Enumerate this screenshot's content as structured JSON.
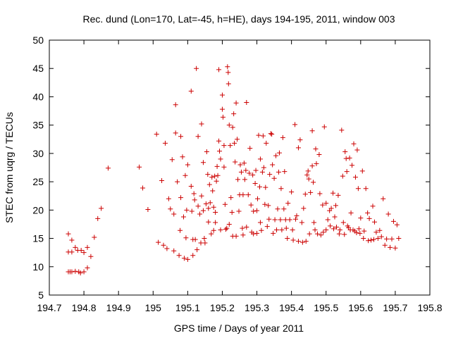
{
  "chart_data": {
    "type": "scatter",
    "title": "Rec. dund (Lon=170, Lat=-45, h=HE), days 194-195, 2011, window 003",
    "xlabel": "GPS time / Days of year 2011",
    "ylabel": "STEC from uqrg / TECUs",
    "xlim": [
      194.7,
      195.8
    ],
    "ylim": [
      5,
      50
    ],
    "xticks": [
      194.7,
      194.8,
      194.9,
      195.0,
      195.1,
      195.2,
      195.3,
      195.4,
      195.5,
      195.6,
      195.7,
      195.8
    ],
    "xtick_labels": [
      "194.7",
      "194.8",
      "194.9",
      "195",
      "195.1",
      "195.2",
      "195.3",
      "195.4",
      "195.5",
      "195.6",
      "195.7",
      "195.8"
    ],
    "yticks": [
      5,
      10,
      15,
      20,
      25,
      30,
      35,
      40,
      45,
      50
    ],
    "ytick_labels": [
      "5",
      "10",
      "15",
      "20",
      "25",
      "30",
      "35",
      "40",
      "45",
      "50"
    ],
    "grid": false,
    "marker": "+",
    "color": "#cc0000",
    "series": [
      {
        "name": "STEC",
        "points": [
          [
            194.755,
            9.1
          ],
          [
            194.76,
            9.1
          ],
          [
            194.765,
            9.1
          ],
          [
            194.775,
            9.2
          ],
          [
            194.785,
            9.1
          ],
          [
            194.79,
            8.9
          ],
          [
            194.8,
            9.1
          ],
          [
            194.81,
            9.8
          ],
          [
            194.755,
            12.6
          ],
          [
            194.765,
            12.6
          ],
          [
            194.775,
            13.4
          ],
          [
            194.782,
            12.9
          ],
          [
            194.792,
            12.9
          ],
          [
            194.8,
            12.5
          ],
          [
            194.81,
            13.4
          ],
          [
            194.82,
            11.8
          ],
          [
            194.755,
            15.8
          ],
          [
            194.765,
            14.7
          ],
          [
            194.83,
            15.2
          ],
          [
            194.84,
            18.5
          ],
          [
            194.85,
            20.3
          ],
          [
            194.87,
            27.4
          ],
          [
            194.96,
            27.6
          ],
          [
            194.97,
            23.9
          ],
          [
            194.985,
            20.1
          ],
          [
            195.01,
            33.4
          ],
          [
            195.015,
            14.3
          ],
          [
            195.025,
            25.2
          ],
          [
            195.03,
            13.8
          ],
          [
            195.035,
            31.8
          ],
          [
            195.04,
            13.2
          ],
          [
            195.045,
            22.0
          ],
          [
            195.05,
            20.2
          ],
          [
            195.055,
            28.9
          ],
          [
            195.06,
            12.8
          ],
          [
            195.06,
            19.3
          ],
          [
            195.065,
            33.6
          ],
          [
            195.065,
            38.6
          ],
          [
            195.07,
            25.0
          ],
          [
            195.075,
            12.0
          ],
          [
            195.078,
            16.4
          ],
          [
            195.08,
            33.0
          ],
          [
            195.08,
            22.2
          ],
          [
            195.085,
            29.4
          ],
          [
            195.088,
            18.8
          ],
          [
            195.09,
            11.5
          ],
          [
            195.093,
            26.1
          ],
          [
            195.095,
            15.1
          ],
          [
            195.097,
            20.0
          ],
          [
            195.1,
            28.0
          ],
          [
            195.1,
            11.3
          ],
          [
            195.11,
            41.0
          ],
          [
            195.11,
            24.2
          ],
          [
            195.112,
            19.8
          ],
          [
            195.115,
            14.8
          ],
          [
            195.115,
            12.0
          ],
          [
            195.118,
            22.9
          ],
          [
            195.12,
            21.8
          ],
          [
            195.122,
            14.8
          ],
          [
            195.125,
            45.0
          ],
          [
            195.127,
            13.0
          ],
          [
            195.13,
            33.0
          ],
          [
            195.13,
            20.7
          ],
          [
            195.135,
            19.3
          ],
          [
            195.138,
            14.2
          ],
          [
            195.14,
            35.2
          ],
          [
            195.14,
            22.5
          ],
          [
            195.145,
            28.4
          ],
          [
            195.145,
            19.9
          ],
          [
            195.148,
            15.0
          ],
          [
            195.15,
            14.2
          ],
          [
            195.153,
            21.1
          ],
          [
            195.155,
            30.3
          ],
          [
            195.158,
            26.3
          ],
          [
            195.16,
            20.3
          ],
          [
            195.16,
            17.9
          ],
          [
            195.163,
            24.5
          ],
          [
            195.165,
            21.3
          ],
          [
            195.168,
            15.8
          ],
          [
            195.17,
            25.8
          ],
          [
            195.172,
            23.4
          ],
          [
            195.175,
            16.4
          ],
          [
            195.175,
            20.5
          ],
          [
            195.178,
            26.0
          ],
          [
            195.18,
            19.6
          ],
          [
            195.18,
            17.8
          ],
          [
            195.183,
            25.1
          ],
          [
            195.185,
            27.7
          ],
          [
            195.187,
            26.1
          ],
          [
            195.19,
            44.8
          ],
          [
            195.19,
            32.2
          ],
          [
            195.192,
            30.4
          ],
          [
            195.195,
            29.0
          ],
          [
            195.195,
            16.5
          ],
          [
            195.2,
            40.3
          ],
          [
            195.2,
            37.8
          ],
          [
            195.202,
            36.4
          ],
          [
            195.205,
            31.4
          ],
          [
            195.205,
            27.6
          ],
          [
            195.208,
            21.0
          ],
          [
            195.21,
            16.6
          ],
          [
            195.213,
            16.8
          ],
          [
            195.215,
            45.3
          ],
          [
            195.217,
            44.3
          ],
          [
            195.218,
            42.3
          ],
          [
            195.22,
            35.0
          ],
          [
            195.22,
            17.5
          ],
          [
            195.223,
            31.4
          ],
          [
            195.225,
            22.2
          ],
          [
            195.228,
            19.6
          ],
          [
            195.23,
            34.6
          ],
          [
            195.23,
            15.4
          ],
          [
            195.233,
            37.0
          ],
          [
            195.235,
            31.8
          ],
          [
            195.237,
            28.5
          ],
          [
            195.24,
            38.9
          ],
          [
            195.24,
            15.4
          ],
          [
            195.243,
            32.5
          ],
          [
            195.245,
            25.4
          ],
          [
            195.248,
            19.8
          ],
          [
            195.25,
            22.7
          ],
          [
            195.252,
            28.0
          ],
          [
            195.255,
            26.7
          ],
          [
            195.258,
            16.8
          ],
          [
            195.26,
            22.7
          ],
          [
            195.26,
            15.6
          ],
          [
            195.263,
            28.3
          ],
          [
            195.265,
            25.4
          ],
          [
            195.268,
            27.0
          ],
          [
            195.27,
            17.0
          ],
          [
            195.27,
            39.0
          ],
          [
            195.275,
            22.7
          ],
          [
            195.278,
            26.5
          ],
          [
            195.28,
            30.9
          ],
          [
            195.283,
            20.9
          ],
          [
            195.285,
            16.1
          ],
          [
            195.288,
            26.2
          ],
          [
            195.29,
            19.8
          ],
          [
            195.29,
            15.8
          ],
          [
            195.295,
            24.7
          ],
          [
            195.297,
            27.0
          ],
          [
            195.3,
            19.9
          ],
          [
            195.3,
            15.9
          ],
          [
            195.302,
            22.0
          ],
          [
            195.305,
            33.2
          ],
          [
            195.308,
            24.1
          ],
          [
            195.31,
            29.0
          ],
          [
            195.31,
            17.8
          ],
          [
            195.313,
            16.4
          ],
          [
            195.316,
            26.7
          ],
          [
            195.318,
            33.1
          ],
          [
            195.32,
            27.5
          ],
          [
            195.323,
            21.0
          ],
          [
            195.325,
            24.0
          ],
          [
            195.327,
            31.8
          ],
          [
            195.33,
            17.1
          ],
          [
            195.333,
            20.8
          ],
          [
            195.335,
            18.4
          ],
          [
            195.337,
            26.3
          ],
          [
            195.34,
            33.5
          ],
          [
            195.343,
            33.4
          ],
          [
            195.345,
            28.0
          ],
          [
            195.347,
            15.9
          ],
          [
            195.35,
            25.6
          ],
          [
            195.352,
            18.3
          ],
          [
            195.355,
            29.6
          ],
          [
            195.357,
            16.5
          ],
          [
            195.36,
            20.2
          ],
          [
            195.363,
            26.7
          ],
          [
            195.365,
            30.1
          ],
          [
            195.368,
            18.3
          ],
          [
            195.37,
            23.8
          ],
          [
            195.372,
            16.5
          ],
          [
            195.375,
            32.8
          ],
          [
            195.378,
            20.2
          ],
          [
            195.38,
            26.8
          ],
          [
            195.383,
            18.3
          ],
          [
            195.385,
            16.8
          ],
          [
            195.388,
            15.0
          ],
          [
            195.39,
            21.2
          ],
          [
            195.395,
            18.3
          ],
          [
            195.4,
            23.2
          ],
          [
            195.403,
            16.5
          ],
          [
            195.405,
            14.7
          ],
          [
            195.41,
            35.1
          ],
          [
            195.412,
            18.4
          ],
          [
            195.415,
            19.0
          ],
          [
            195.42,
            31.0
          ],
          [
            195.42,
            14.5
          ],
          [
            195.425,
            32.4
          ],
          [
            195.43,
            17.8
          ],
          [
            195.432,
            14.3
          ],
          [
            195.435,
            20.3
          ],
          [
            195.44,
            22.8
          ],
          [
            195.442,
            14.5
          ],
          [
            195.445,
            26.2
          ],
          [
            195.448,
            26.9
          ],
          [
            195.45,
            25.5
          ],
          [
            195.452,
            15.8
          ],
          [
            195.455,
            23.1
          ],
          [
            195.46,
            34.0
          ],
          [
            195.46,
            27.8
          ],
          [
            195.463,
            24.9
          ],
          [
            195.465,
            17.8
          ],
          [
            195.468,
            16.5
          ],
          [
            195.47,
            30.8
          ],
          [
            195.472,
            28.2
          ],
          [
            195.475,
            15.8
          ],
          [
            195.48,
            29.8
          ],
          [
            195.482,
            22.9
          ],
          [
            195.485,
            15.6
          ],
          [
            195.49,
            20.9
          ],
          [
            195.492,
            16.1
          ],
          [
            195.495,
            34.7
          ],
          [
            195.5,
            21.2
          ],
          [
            195.5,
            16.5
          ],
          [
            195.505,
            18.3
          ],
          [
            195.51,
            19.9
          ],
          [
            195.512,
            17.2
          ],
          [
            195.515,
            20.3
          ],
          [
            195.52,
            23.0
          ],
          [
            195.522,
            16.7
          ],
          [
            195.525,
            18.8
          ],
          [
            195.528,
            20.8
          ],
          [
            195.53,
            17.0
          ],
          [
            195.535,
            22.6
          ],
          [
            195.538,
            15.8
          ],
          [
            195.54,
            16.5
          ],
          [
            195.545,
            34.1
          ],
          [
            195.548,
            26.0
          ],
          [
            195.55,
            17.8
          ],
          [
            195.553,
            15.7
          ],
          [
            195.555,
            30.3
          ],
          [
            195.558,
            29.1
          ],
          [
            195.56,
            26.8
          ],
          [
            195.562,
            17.2
          ],
          [
            195.565,
            16.9
          ],
          [
            195.568,
            29.2
          ],
          [
            195.57,
            16.5
          ],
          [
            195.572,
            19.5
          ],
          [
            195.575,
            27.9
          ],
          [
            195.578,
            16.5
          ],
          [
            195.58,
            31.7
          ],
          [
            195.583,
            16.3
          ],
          [
            195.585,
            25.8
          ],
          [
            195.588,
            16.0
          ],
          [
            195.59,
            30.6
          ],
          [
            195.593,
            23.8
          ],
          [
            195.595,
            16.7
          ],
          [
            195.598,
            15.9
          ],
          [
            195.6,
            18.6
          ],
          [
            195.605,
            26.9
          ],
          [
            195.608,
            15.0
          ],
          [
            195.61,
            16.3
          ],
          [
            195.615,
            23.8
          ],
          [
            195.62,
            19.5
          ],
          [
            195.622,
            14.6
          ],
          [
            195.625,
            18.5
          ],
          [
            195.63,
            14.7
          ],
          [
            195.635,
            20.7
          ],
          [
            195.638,
            14.8
          ],
          [
            195.64,
            17.9
          ],
          [
            195.645,
            16.1
          ],
          [
            195.65,
            15.0
          ],
          [
            195.655,
            16.4
          ],
          [
            195.66,
            15.3
          ],
          [
            195.665,
            22.0
          ],
          [
            195.67,
            13.8
          ],
          [
            195.675,
            14.9
          ],
          [
            195.68,
            19.3
          ],
          [
            195.685,
            13.4
          ],
          [
            195.69,
            14.9
          ],
          [
            195.695,
            18.0
          ],
          [
            195.7,
            13.3
          ],
          [
            195.705,
            17.4
          ],
          [
            195.71,
            15.0
          ]
        ]
      }
    ]
  }
}
